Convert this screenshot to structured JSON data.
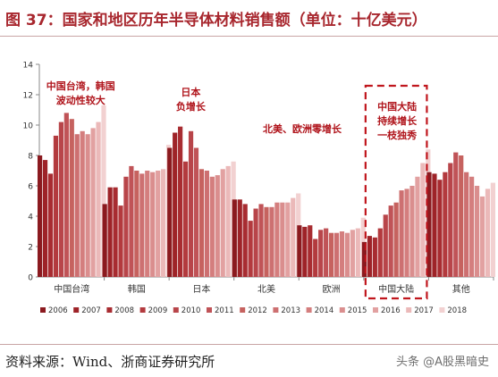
{
  "title": "图 37：国家和地区历年半导体材料销售额（单位：十亿美元）",
  "source": "资料来源：Wind、浙商证券研究所",
  "watermark": "头条 @A股黑暗史",
  "chart_data": {
    "type": "bar",
    "ylim": [
      0,
      14
    ],
    "yticks": [
      0,
      2,
      4,
      6,
      8,
      10,
      12,
      14
    ],
    "grid": false,
    "legend_position": "bottom",
    "categories": [
      "中国台湾",
      "韩国",
      "日本",
      "北美",
      "欧洲",
      "中国大陆",
      "其他"
    ],
    "series": [
      {
        "name": "2006",
        "color": "#8b1a1f",
        "values": [
          8.0,
          4.8,
          8.5,
          5.1,
          3.4,
          2.3,
          6.9
        ]
      },
      {
        "name": "2007",
        "color": "#9e2328",
        "values": [
          7.7,
          5.9,
          9.5,
          5.1,
          3.3,
          2.7,
          6.8
        ]
      },
      {
        "name": "2008",
        "color": "#a82c31",
        "values": [
          6.8,
          5.9,
          9.9,
          4.8,
          3.4,
          2.6,
          6.4
        ]
      },
      {
        "name": "2009",
        "color": "#b33a3e",
        "values": [
          9.3,
          4.7,
          7.6,
          3.7,
          2.5,
          3.2,
          6.9
        ]
      },
      {
        "name": "2010",
        "color": "#b8454a",
        "values": [
          10.2,
          6.6,
          9.6,
          4.5,
          3.1,
          4.1,
          7.5
        ]
      },
      {
        "name": "2011",
        "color": "#c05357",
        "values": [
          10.8,
          7.3,
          8.5,
          4.8,
          3.2,
          4.7,
          8.2
        ]
      },
      {
        "name": "2012",
        "color": "#c6625f",
        "values": [
          10.4,
          7.0,
          7.1,
          4.6,
          2.9,
          4.9,
          8.0
        ]
      },
      {
        "name": "2013",
        "color": "#cd7071",
        "values": [
          9.4,
          6.8,
          7.0,
          4.6,
          2.9,
          5.7,
          6.9
        ]
      },
      {
        "name": "2014",
        "color": "#d47e7e",
        "values": [
          9.6,
          7.0,
          6.6,
          4.9,
          3.0,
          5.8,
          6.6
        ]
      },
      {
        "name": "2015",
        "color": "#da8e8e",
        "values": [
          9.4,
          6.9,
          6.7,
          4.9,
          2.9,
          6.0,
          6.0
        ]
      },
      {
        "name": "2016",
        "color": "#e2a1a1",
        "values": [
          9.8,
          7.0,
          7.1,
          4.9,
          3.1,
          6.6,
          5.3
        ]
      },
      {
        "name": "2017",
        "color": "#ebb9b9",
        "values": [
          10.2,
          7.1,
          7.3,
          5.2,
          3.2,
          7.5,
          5.8
        ]
      },
      {
        "name": "2018",
        "color": "#f2d1d1",
        "values": [
          11.3,
          8.7,
          7.6,
          5.5,
          3.9,
          8.4,
          6.2
        ]
      }
    ],
    "annotations": [
      {
        "lines": [
          "中国台湾，韩国",
          "波动性较大"
        ],
        "category": "中国台湾"
      },
      {
        "lines": [
          "日本",
          "负增长"
        ],
        "category": "日本"
      },
      {
        "lines": [
          "北美、欧洲零增长"
        ],
        "category": "北美"
      },
      {
        "lines": [
          "中国大陆",
          "持续增长",
          "一枝独秀"
        ],
        "category": "中国大陆"
      }
    ],
    "highlight_category": "中国大陆"
  }
}
